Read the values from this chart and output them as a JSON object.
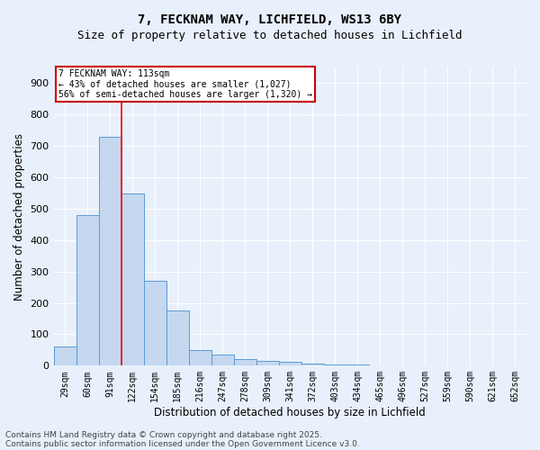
{
  "title_line1": "7, FECKNAM WAY, LICHFIELD, WS13 6BY",
  "title_line2": "Size of property relative to detached houses in Lichfield",
  "xlabel": "Distribution of detached houses by size in Lichfield",
  "ylabel": "Number of detached properties",
  "categories": [
    "29sqm",
    "60sqm",
    "91sqm",
    "122sqm",
    "154sqm",
    "185sqm",
    "216sqm",
    "247sqm",
    "278sqm",
    "309sqm",
    "341sqm",
    "372sqm",
    "403sqm",
    "434sqm",
    "465sqm",
    "496sqm",
    "527sqm",
    "559sqm",
    "590sqm",
    "621sqm",
    "652sqm"
  ],
  "values": [
    60,
    480,
    730,
    550,
    270,
    175,
    50,
    35,
    20,
    15,
    12,
    8,
    5,
    4,
    0,
    0,
    0,
    0,
    0,
    0,
    0
  ],
  "bar_color": "#c5d8f0",
  "bar_edge_color": "#5b9bd5",
  "red_line_x": 2.5,
  "annotation_line1": "7 FECKNAM WAY: 113sqm",
  "annotation_line2": "← 43% of detached houses are smaller (1,027)",
  "annotation_line3": "56% of semi-detached houses are larger (1,320) →",
  "annotation_box_color": "#ffffff",
  "annotation_box_edge": "#cc0000",
  "ylim": [
    0,
    950
  ],
  "yticks": [
    0,
    100,
    200,
    300,
    400,
    500,
    600,
    700,
    800,
    900
  ],
  "footnote_line1": "Contains HM Land Registry data © Crown copyright and database right 2025.",
  "footnote_line2": "Contains public sector information licensed under the Open Government Licence v3.0.",
  "bg_color": "#e8f0fb",
  "plot_bg_color": "#e8f0fb",
  "grid_color": "#ffffff",
  "title_fontsize": 10,
  "subtitle_fontsize": 9,
  "tick_fontsize": 7,
  "label_fontsize": 8.5,
  "footnote_fontsize": 6.5
}
